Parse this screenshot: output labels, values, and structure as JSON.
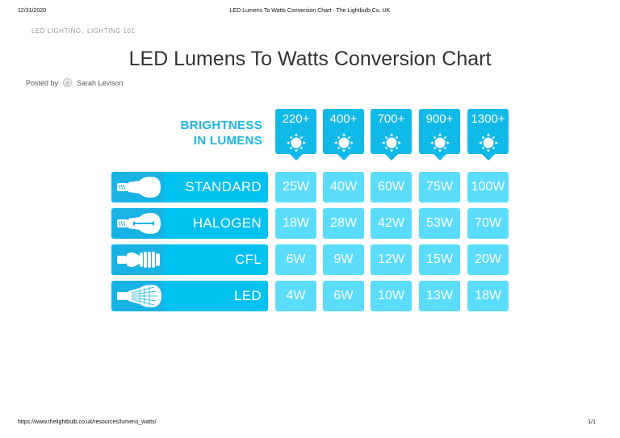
{
  "print_header": {
    "date": "12/31/2020",
    "title": "LED Lumens To Watts Conversion Chart - The Lightbulb Co. UK"
  },
  "print_footer": {
    "url": "https://www.thelightbulb.co.uk/resources/lumens_watts/",
    "page": "1/1"
  },
  "post": {
    "categories": [
      "LED LIGHTING",
      "LIGHTING 101"
    ],
    "category_separator": ",",
    "title": "LED Lumens To Watts Conversion Chart",
    "byline_prefix": "Posted by",
    "author": "Sarah Levison"
  },
  "chart_data": {
    "type": "table",
    "title": "Brightness in Lumens",
    "header_label_line1": "BRIGHTNESS",
    "header_label_line2": "IN LUMENS",
    "columns": [
      "220+",
      "400+",
      "700+",
      "900+",
      "1300+"
    ],
    "rows": [
      {
        "label": "STANDARD",
        "icon": "incandescent-bulb-icon",
        "values": [
          "25W",
          "40W",
          "60W",
          "75W",
          "100W"
        ]
      },
      {
        "label": "HALOGEN",
        "icon": "halogen-bulb-icon",
        "values": [
          "18W",
          "28W",
          "42W",
          "53W",
          "70W"
        ]
      },
      {
        "label": "CFL",
        "icon": "cfl-bulb-icon",
        "values": [
          "6W",
          "9W",
          "12W",
          "15W",
          "20W"
        ]
      },
      {
        "label": "LED",
        "icon": "led-bulb-icon",
        "values": [
          "4W",
          "6W",
          "10W",
          "13W",
          "18W"
        ]
      }
    ],
    "colors": {
      "header": "#11b9e8",
      "label_row": "#00c1ef",
      "icon_zone": "#18b3e4",
      "value_cell": "#5cdcfb",
      "title_text": "#1ab6e8"
    }
  }
}
